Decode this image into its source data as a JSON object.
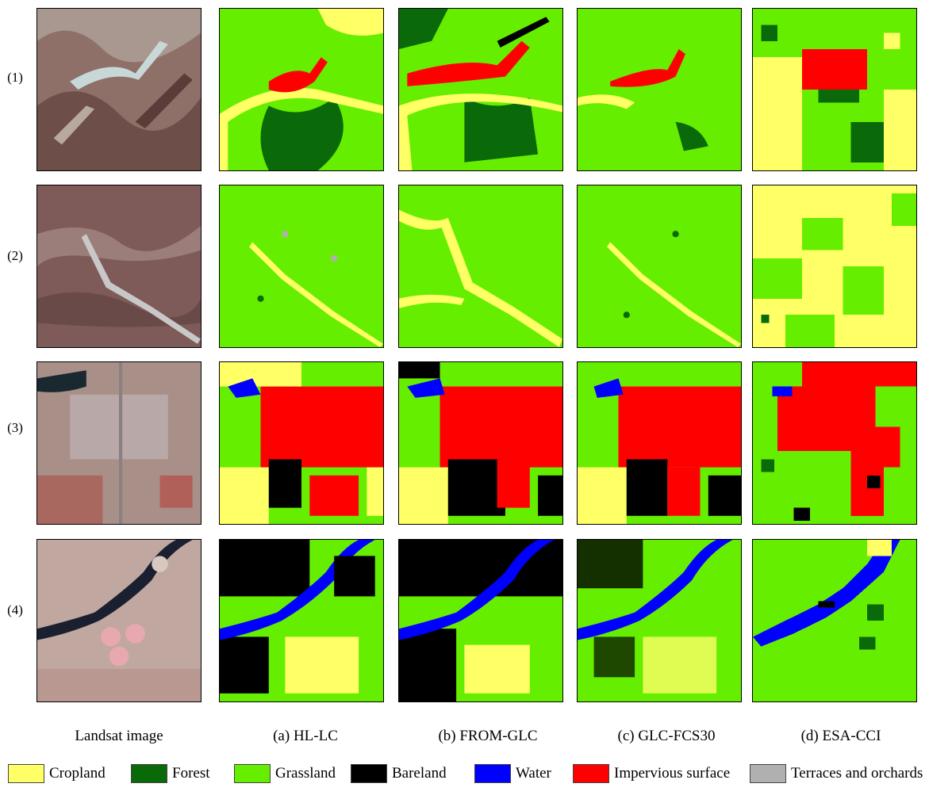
{
  "row_labels": [
    "(1)",
    "(2)",
    "(3)",
    "(4)"
  ],
  "column_labels": [
    "Landsat image",
    "(a)  HL-LC",
    "(b)  FROM-GLC",
    "(c)  GLC-FCS30",
    "(d)  ESA-CCI"
  ],
  "legend": [
    {
      "label": "Cropland",
      "color": "#ffff66"
    },
    {
      "label": "Forest",
      "color": "#0a6a0a"
    },
    {
      "label": "Grassland",
      "color": "#66ee00"
    },
    {
      "label": "Bareland",
      "color": "#000000"
    },
    {
      "label": "Water",
      "color": "#0000ff"
    },
    {
      "label": "Impervious surface",
      "color": "#ff0000"
    },
    {
      "label": "Terraces and orchards",
      "color": "#b0b0b0"
    }
  ]
}
